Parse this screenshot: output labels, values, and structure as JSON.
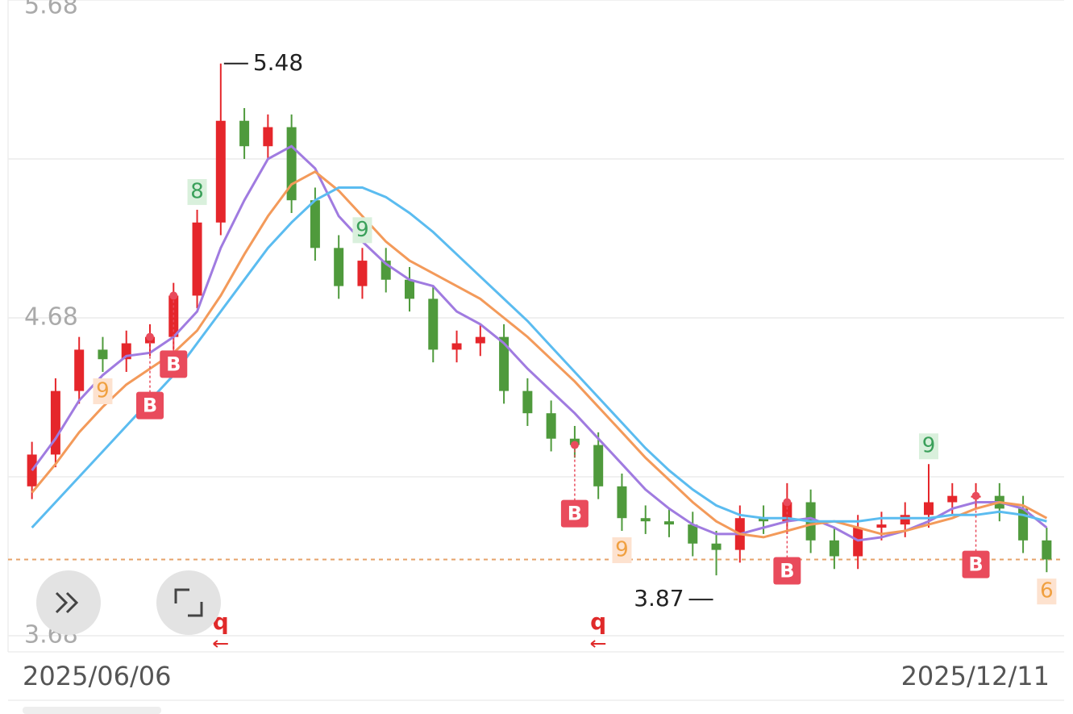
{
  "chart_data": {
    "type": "candlestick",
    "ylim": [
      3.68,
      5.68
    ],
    "yticks": [
      5.68,
      4.68,
      3.68
    ],
    "gridlines": [
      5.68,
      5.18,
      4.68,
      4.18,
      3.68
    ],
    "grid": true,
    "x_labels": [
      "2025/06/06",
      "2025/12/11"
    ],
    "up_color": "#e5262b",
    "down_color": "#4f9a3c",
    "open": [
      4.15,
      4.25,
      4.45,
      4.58,
      4.55,
      4.6,
      4.62,
      4.75,
      4.98,
      5.3,
      5.22,
      5.28,
      5.05,
      4.9,
      4.78,
      4.86,
      4.8,
      4.74,
      4.58,
      4.6,
      4.62,
      4.45,
      4.38,
      4.3,
      4.28,
      4.15,
      4.05,
      4.04,
      4.03,
      3.97,
      3.95,
      4.05,
      4.04,
      4.1,
      3.98,
      3.93,
      4.02,
      4.03,
      4.06,
      4.1,
      4.12,
      4.12,
      4.08,
      3.98
    ],
    "high": [
      4.29,
      4.49,
      4.62,
      4.62,
      4.64,
      4.66,
      4.79,
      5.02,
      5.48,
      5.34,
      5.32,
      5.32,
      5.09,
      4.94,
      4.9,
      4.9,
      4.84,
      4.78,
      4.64,
      4.66,
      4.66,
      4.49,
      4.42,
      4.34,
      4.32,
      4.19,
      4.09,
      4.08,
      4.07,
      4.01,
      4.09,
      4.09,
      4.16,
      4.14,
      4.02,
      4.06,
      4.07,
      4.1,
      4.22,
      4.16,
      4.16,
      4.16,
      4.12,
      4.02
    ],
    "low": [
      4.11,
      4.21,
      4.41,
      4.51,
      4.51,
      4.56,
      4.58,
      4.71,
      4.94,
      5.18,
      5.18,
      5.01,
      4.86,
      4.74,
      4.74,
      4.76,
      4.7,
      4.54,
      4.54,
      4.56,
      4.41,
      4.34,
      4.26,
      4.24,
      4.11,
      4.01,
      4.0,
      3.99,
      3.93,
      3.87,
      3.91,
      4.0,
      4.0,
      3.94,
      3.89,
      3.89,
      3.98,
      3.99,
      4.02,
      4.06,
      4.08,
      4.04,
      3.94,
      3.88
    ],
    "close": [
      4.25,
      4.45,
      4.58,
      4.55,
      4.6,
      4.62,
      4.75,
      4.98,
      5.3,
      5.22,
      5.28,
      5.05,
      4.9,
      4.78,
      4.86,
      4.8,
      4.74,
      4.58,
      4.6,
      4.62,
      4.45,
      4.38,
      4.3,
      4.28,
      4.15,
      4.05,
      4.04,
      4.03,
      3.97,
      3.95,
      4.05,
      4.04,
      4.1,
      3.98,
      3.93,
      4.02,
      4.03,
      4.06,
      4.1,
      4.12,
      4.12,
      4.08,
      3.98,
      3.92
    ],
    "series": [
      {
        "color": "#a07be0",
        "values": [
          4.2,
          4.3,
          4.42,
          4.5,
          4.56,
          4.57,
          4.62,
          4.7,
          4.9,
          5.05,
          5.18,
          5.22,
          5.15,
          5.0,
          4.92,
          4.85,
          4.8,
          4.78,
          4.7,
          4.66,
          4.6,
          4.52,
          4.45,
          4.38,
          4.3,
          4.22,
          4.14,
          4.08,
          4.03,
          4.0,
          4.0,
          4.02,
          4.04,
          4.05,
          4.02,
          3.98,
          3.99,
          4.01,
          4.04,
          4.08,
          4.1,
          4.1,
          4.08,
          4.02
        ]
      },
      {
        "color": "#f39a5a",
        "values": [
          4.13,
          4.22,
          4.32,
          4.4,
          4.47,
          4.52,
          4.57,
          4.64,
          4.75,
          4.88,
          5.0,
          5.1,
          5.14,
          5.08,
          5.0,
          4.92,
          4.86,
          4.82,
          4.78,
          4.74,
          4.68,
          4.62,
          4.55,
          4.48,
          4.4,
          4.32,
          4.24,
          4.17,
          4.1,
          4.04,
          4.0,
          3.99,
          4.01,
          4.03,
          4.04,
          4.02,
          4.0,
          4.01,
          4.03,
          4.05,
          4.08,
          4.1,
          4.09,
          4.05
        ]
      },
      {
        "color": "#5bbcf0",
        "values": [
          4.02,
          4.1,
          4.18,
          4.26,
          4.34,
          4.42,
          4.5,
          4.6,
          4.7,
          4.8,
          4.9,
          4.98,
          5.05,
          5.09,
          5.09,
          5.06,
          5.01,
          4.95,
          4.88,
          4.81,
          4.74,
          4.67,
          4.59,
          4.51,
          4.43,
          4.35,
          4.27,
          4.2,
          4.14,
          4.09,
          4.06,
          4.05,
          4.05,
          4.04,
          4.04,
          4.04,
          4.05,
          4.05,
          4.05,
          4.06,
          4.06,
          4.07,
          4.06,
          4.04
        ]
      }
    ],
    "nine_turn": [
      null,
      null,
      null,
      "9",
      null,
      null,
      null,
      "8",
      null,
      null,
      null,
      null,
      null,
      null,
      "9",
      null,
      null,
      null,
      null,
      null,
      null,
      null,
      null,
      null,
      null,
      "9",
      null,
      null,
      null,
      null,
      null,
      null,
      null,
      null,
      null,
      null,
      null,
      null,
      "9",
      null,
      null,
      null,
      null,
      "6"
    ],
    "signals": [
      null,
      null,
      null,
      null,
      null,
      "B",
      "B",
      null,
      null,
      null,
      null,
      null,
      null,
      null,
      null,
      null,
      null,
      null,
      null,
      null,
      null,
      null,
      null,
      "B",
      null,
      null,
      null,
      null,
      null,
      null,
      null,
      null,
      "B",
      null,
      null,
      null,
      null,
      null,
      null,
      null,
      "B",
      null,
      null,
      null
    ],
    "bottom_marks": [
      null,
      null,
      null,
      null,
      null,
      null,
      null,
      null,
      "q",
      null,
      null,
      null,
      null,
      null,
      null,
      null,
      null,
      null,
      null,
      null,
      null,
      null,
      null,
      null,
      "q",
      null,
      null,
      null,
      null,
      null,
      null,
      null,
      null,
      null,
      null,
      null,
      null,
      null,
      null,
      null,
      null,
      null,
      null,
      null
    ]
  }
}
